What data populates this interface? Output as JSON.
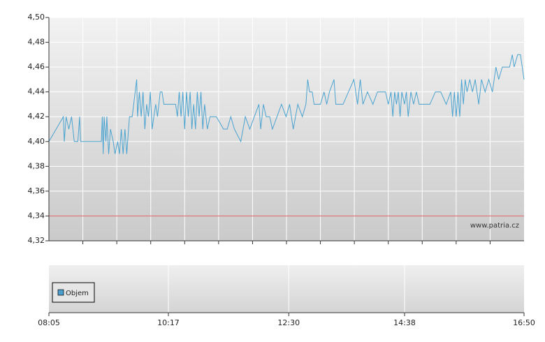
{
  "chart_data": [
    {
      "type": "line",
      "color": "#4aa3d0",
      "x": [
        "08:05",
        "08:21",
        "08:22",
        "08:24",
        "08:27",
        "08:30",
        "08:33",
        "08:37",
        "08:39",
        "08:40",
        "09:03",
        "09:04",
        "09:05",
        "09:06",
        "09:08",
        "09:09",
        "09:11",
        "09:13",
        "09:16",
        "09:18",
        "09:21",
        "09:23",
        "09:25",
        "09:27",
        "09:29",
        "09:31",
        "09:34",
        "09:37",
        "09:42",
        "09:43",
        "09:45",
        "09:47",
        "09:49",
        "09:51",
        "09:53",
        "09:55",
        "09:57",
        "09:59",
        "10:01",
        "10:03",
        "10:05",
        "10:08",
        "10:10",
        "10:12",
        "10:25",
        "10:27",
        "10:29",
        "10:31",
        "10:33",
        "10:35",
        "10:37",
        "10:39",
        "10:41",
        "10:43",
        "10:45",
        "10:47",
        "10:49",
        "10:51",
        "10:53",
        "10:55",
        "10:57",
        "11:00",
        "11:03",
        "11:10",
        "11:18",
        "11:22",
        "11:26",
        "11:30",
        "11:37",
        "11:42",
        "11:47",
        "11:52",
        "11:57",
        "11:59",
        "12:02",
        "12:05",
        "12:09",
        "12:12",
        "12:17",
        "12:22",
        "12:27",
        "12:31",
        "12:35",
        "12:40",
        "12:45",
        "12:49",
        "12:51",
        "12:53",
        "12:56",
        "12:58",
        "13:05",
        "13:09",
        "13:12",
        "13:15",
        "13:20",
        "13:22",
        "13:30",
        "13:36",
        "13:42",
        "13:46",
        "13:49",
        "13:52",
        "13:57",
        "14:03",
        "14:08",
        "14:13",
        "14:17",
        "14:20",
        "14:23",
        "14:25",
        "14:27",
        "14:29",
        "14:31",
        "14:33",
        "14:35",
        "14:38",
        "14:40",
        "14:42",
        "14:45",
        "14:48",
        "14:51",
        "14:54",
        "15:06",
        "15:12",
        "15:18",
        "15:24",
        "15:29",
        "15:31",
        "15:33",
        "15:35",
        "15:37",
        "15:39",
        "15:41",
        "15:43",
        "15:45",
        "15:47",
        "15:50",
        "15:53",
        "15:56",
        "16:00",
        "16:03",
        "16:07",
        "16:11",
        "16:15",
        "16:19",
        "16:22",
        "16:26",
        "16:30",
        "16:34",
        "16:37",
        "16:39",
        "16:43",
        "16:46",
        "16:48",
        "16:50"
      ],
      "values": [
        4.4,
        4.42,
        4.4,
        4.42,
        4.41,
        4.42,
        4.4,
        4.4,
        4.42,
        4.4,
        4.4,
        4.42,
        4.39,
        4.42,
        4.4,
        4.42,
        4.39,
        4.41,
        4.4,
        4.39,
        4.4,
        4.39,
        4.41,
        4.39,
        4.41,
        4.39,
        4.42,
        4.42,
        4.45,
        4.42,
        4.44,
        4.42,
        4.44,
        4.41,
        4.43,
        4.42,
        4.44,
        4.41,
        4.42,
        4.43,
        4.42,
        4.44,
        4.44,
        4.43,
        4.43,
        4.42,
        4.44,
        4.42,
        4.44,
        4.41,
        4.44,
        4.42,
        4.44,
        4.41,
        4.43,
        4.41,
        4.44,
        4.42,
        4.44,
        4.41,
        4.43,
        4.41,
        4.42,
        4.42,
        4.41,
        4.41,
        4.42,
        4.41,
        4.4,
        4.42,
        4.41,
        4.42,
        4.43,
        4.41,
        4.43,
        4.42,
        4.42,
        4.41,
        4.42,
        4.43,
        4.42,
        4.43,
        4.41,
        4.43,
        4.42,
        4.43,
        4.45,
        4.44,
        4.44,
        4.43,
        4.43,
        4.44,
        4.43,
        4.44,
        4.45,
        4.43,
        4.43,
        4.44,
        4.45,
        4.43,
        4.45,
        4.43,
        4.44,
        4.43,
        4.44,
        4.44,
        4.44,
        4.43,
        4.44,
        4.42,
        4.44,
        4.43,
        4.44,
        4.42,
        4.44,
        4.43,
        4.44,
        4.42,
        4.44,
        4.43,
        4.44,
        4.43,
        4.43,
        4.44,
        4.44,
        4.43,
        4.44,
        4.42,
        4.44,
        4.42,
        4.44,
        4.42,
        4.45,
        4.43,
        4.45,
        4.44,
        4.45,
        4.44,
        4.45,
        4.43,
        4.45,
        4.44,
        4.45,
        4.44,
        4.46,
        4.45,
        4.46,
        4.46,
        4.46,
        4.47,
        4.46,
        4.47,
        4.47,
        4.46,
        4.45
      ],
      "xlim": [
        "08:05",
        "16:50"
      ],
      "ylim": [
        4.32,
        4.5
      ],
      "yticks": [
        {
          "value": 4.32,
          "label": "4,32"
        },
        {
          "value": 4.34,
          "label": "4,34"
        },
        {
          "value": 4.36,
          "label": "4,36"
        },
        {
          "value": 4.38,
          "label": "4,38"
        },
        {
          "value": 4.4,
          "label": "4,40"
        },
        {
          "value": 4.42,
          "label": "4,42"
        },
        {
          "value": 4.44,
          "label": "4,44"
        },
        {
          "value": 4.46,
          "label": "4,46"
        },
        {
          "value": 4.48,
          "label": "4,48"
        },
        {
          "value": 4.5,
          "label": "4,50"
        }
      ],
      "reference_line": {
        "value": 4.34,
        "color": "#e07070"
      },
      "watermark": "www.patria.cz",
      "grid": true
    },
    {
      "type": "bar",
      "series": [
        {
          "name": "Objem",
          "color": "#4a9fcf",
          "values": []
        }
      ],
      "xlim": [
        "08:05",
        "16:50"
      ],
      "xticks": [
        "08:05",
        "10:17",
        "12:30",
        "14:38",
        "16:50"
      ],
      "legend": "left",
      "grid": true
    }
  ]
}
